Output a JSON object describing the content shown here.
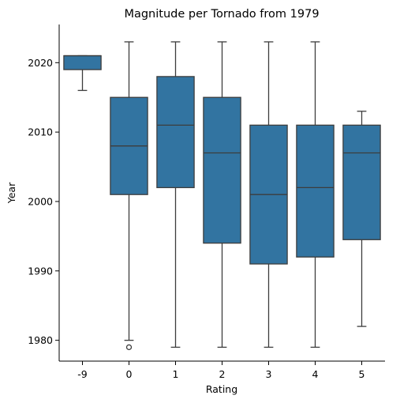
{
  "chart_data": {
    "type": "box",
    "title": "Magnitude per Tornado from 1979",
    "xlabel": "Rating",
    "ylabel": "Year",
    "categories": [
      "-9",
      "0",
      "1",
      "2",
      "3",
      "4",
      "5"
    ],
    "boxes": [
      {
        "category": "-9",
        "whisker_low": 2016,
        "q1": 2019,
        "median": 2021,
        "q3": 2021,
        "whisker_high": 2021,
        "outliers": []
      },
      {
        "category": "0",
        "whisker_low": 1980,
        "q1": 2001,
        "median": 2008,
        "q3": 2015,
        "whisker_high": 2023,
        "outliers": [
          1979
        ]
      },
      {
        "category": "1",
        "whisker_low": 1979,
        "q1": 2002,
        "median": 2011,
        "q3": 2018,
        "whisker_high": 2023,
        "outliers": []
      },
      {
        "category": "2",
        "whisker_low": 1979,
        "q1": 1994,
        "median": 2007,
        "q3": 2015,
        "whisker_high": 2023,
        "outliers": []
      },
      {
        "category": "3",
        "whisker_low": 1979,
        "q1": 1991,
        "median": 2001,
        "q3": 2011,
        "whisker_high": 2023,
        "outliers": []
      },
      {
        "category": "4",
        "whisker_low": 1979,
        "q1": 1992,
        "median": 2002,
        "q3": 2011,
        "whisker_high": 2023,
        "outliers": []
      },
      {
        "category": "5",
        "whisker_low": 1982,
        "q1": 1994.5,
        "median": 2007,
        "q3": 2011,
        "whisker_high": 2013,
        "outliers": []
      }
    ],
    "yticks": [
      1980,
      1990,
      2000,
      2010,
      2020
    ],
    "ylim": [
      1977,
      2025.5
    ],
    "grid": false,
    "colors": {
      "box_fill": "#3274a1",
      "line": "#3d3d3d",
      "axis": "#000000"
    }
  }
}
